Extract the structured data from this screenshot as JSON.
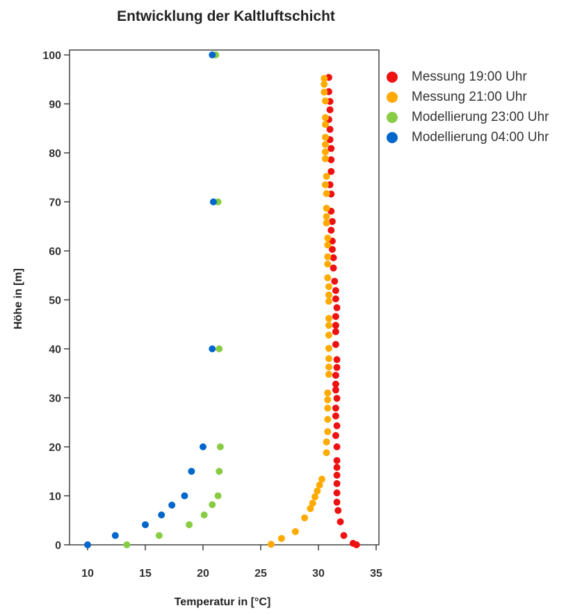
{
  "chart_data": {
    "type": "scatter",
    "title": "Entwicklung der Kaltluftschicht",
    "xlabel": "Temperatur in [°C]",
    "ylabel": "Höhe in [m]",
    "xlim": [
      8,
      35
    ],
    "ylim": [
      0,
      100
    ],
    "xticks": [
      10,
      15,
      20,
      25,
      30,
      35
    ],
    "yticks": [
      0,
      10,
      20,
      30,
      40,
      50,
      60,
      70,
      80,
      90,
      100
    ],
    "xtick_labels": [
      "10",
      "15",
      "20",
      "25",
      "30",
      "35"
    ],
    "ytick_labels": [
      "0",
      "10",
      "20",
      "30",
      "40",
      "50",
      "60",
      "70",
      "80",
      "90",
      "100"
    ],
    "grid": false,
    "legend_position": "right",
    "series": [
      {
        "name": "Messung 19:00 Uhr",
        "color": "#ee1111",
        "points": [
          [
            33.3,
            0
          ],
          [
            33.0,
            0.3
          ],
          [
            32.2,
            1.9
          ],
          [
            31.9,
            4.7
          ],
          [
            31.7,
            7.0
          ],
          [
            31.6,
            8.7
          ],
          [
            31.6,
            10.6
          ],
          [
            31.6,
            12.5
          ],
          [
            31.6,
            14.2
          ],
          [
            31.6,
            15.8
          ],
          [
            31.6,
            17.2
          ],
          [
            31.6,
            20.0
          ],
          [
            31.5,
            22.3
          ],
          [
            31.6,
            24.3
          ],
          [
            31.5,
            26.3
          ],
          [
            31.5,
            27.9
          ],
          [
            31.6,
            29.9
          ],
          [
            31.5,
            31.6
          ],
          [
            31.5,
            32.8
          ],
          [
            31.5,
            34.6
          ],
          [
            31.6,
            36.2
          ],
          [
            31.6,
            37.8
          ],
          [
            31.5,
            40.9
          ],
          [
            31.5,
            43.5
          ],
          [
            31.5,
            44.8
          ],
          [
            31.5,
            46.6
          ],
          [
            31.6,
            48.4
          ],
          [
            31.5,
            50.2
          ],
          [
            31.5,
            51.9
          ],
          [
            31.4,
            53.8
          ],
          [
            31.3,
            56.5
          ],
          [
            31.3,
            58.6
          ],
          [
            31.2,
            60.3
          ],
          [
            31.2,
            62.0
          ],
          [
            31.1,
            64.2
          ],
          [
            31.2,
            66.0
          ],
          [
            31.1,
            68.1
          ],
          [
            31.1,
            71.6
          ],
          [
            31.0,
            73.5
          ],
          [
            31.1,
            76.2
          ],
          [
            31.1,
            78.6
          ],
          [
            31.1,
            80.9
          ],
          [
            31.0,
            82.7
          ],
          [
            31.0,
            84.8
          ],
          [
            30.9,
            86.8
          ],
          [
            31.0,
            88.8
          ],
          [
            31.0,
            90.5
          ],
          [
            30.9,
            92.5
          ],
          [
            30.9,
            95.4
          ]
        ]
      },
      {
        "name": "Messung 21:00 Uhr",
        "color": "#ffaa00",
        "points": [
          [
            25.9,
            0.1
          ],
          [
            26.8,
            1.3
          ],
          [
            28.0,
            2.7
          ],
          [
            28.8,
            5.5
          ],
          [
            29.3,
            7.4
          ],
          [
            29.5,
            8.5
          ],
          [
            29.7,
            9.8
          ],
          [
            29.9,
            11.0
          ],
          [
            30.1,
            12.2
          ],
          [
            30.3,
            13.4
          ],
          [
            30.7,
            18.8
          ],
          [
            30.7,
            21.0
          ],
          [
            30.8,
            23.1
          ],
          [
            30.8,
            25.6
          ],
          [
            30.8,
            27.9
          ],
          [
            30.8,
            29.6
          ],
          [
            30.8,
            31.0
          ],
          [
            30.9,
            34.8
          ],
          [
            30.9,
            36.3
          ],
          [
            30.9,
            38.0
          ],
          [
            30.9,
            40.1
          ],
          [
            30.9,
            42.8
          ],
          [
            30.9,
            44.8
          ],
          [
            30.9,
            46.2
          ],
          [
            30.9,
            49.7
          ],
          [
            30.9,
            51.0
          ],
          [
            30.9,
            52.7
          ],
          [
            30.8,
            54.5
          ],
          [
            30.8,
            57.3
          ],
          [
            30.8,
            58.8
          ],
          [
            30.8,
            61.2
          ],
          [
            30.8,
            62.6
          ],
          [
            30.7,
            65.7
          ],
          [
            30.7,
            67.0
          ],
          [
            30.7,
            68.7
          ],
          [
            30.7,
            71.7
          ],
          [
            30.6,
            73.5
          ],
          [
            30.7,
            75.2
          ],
          [
            30.6,
            78.8
          ],
          [
            30.6,
            80.2
          ],
          [
            30.6,
            81.7
          ],
          [
            30.6,
            83.2
          ],
          [
            30.6,
            85.8
          ],
          [
            30.6,
            87.2
          ],
          [
            30.6,
            90.6
          ],
          [
            30.5,
            92.4
          ],
          [
            30.5,
            94.0
          ],
          [
            30.5,
            95.2
          ]
        ]
      },
      {
        "name": "Modellierung 23:00 Uhr",
        "color": "#88cc44",
        "points": [
          [
            13.4,
            0
          ],
          [
            16.2,
            1.9
          ],
          [
            18.8,
            4.1
          ],
          [
            20.1,
            6.1
          ],
          [
            20.8,
            8.2
          ],
          [
            21.3,
            10.0
          ],
          [
            21.4,
            15.0
          ],
          [
            21.5,
            20.0
          ],
          [
            21.4,
            40.0
          ],
          [
            21.3,
            70.0
          ],
          [
            21.1,
            100.0
          ]
        ]
      },
      {
        "name": "Modellierung 04:00 Uhr",
        "color": "#0066cc",
        "points": [
          [
            10.0,
            0
          ],
          [
            12.4,
            1.9
          ],
          [
            15.0,
            4.1
          ],
          [
            16.4,
            6.1
          ],
          [
            17.3,
            8.1
          ],
          [
            18.4,
            10.0
          ],
          [
            19.0,
            15.0
          ],
          [
            20.0,
            20.0
          ],
          [
            20.8,
            40.0
          ],
          [
            20.9,
            70.0
          ],
          [
            20.8,
            100.0
          ]
        ]
      }
    ]
  }
}
